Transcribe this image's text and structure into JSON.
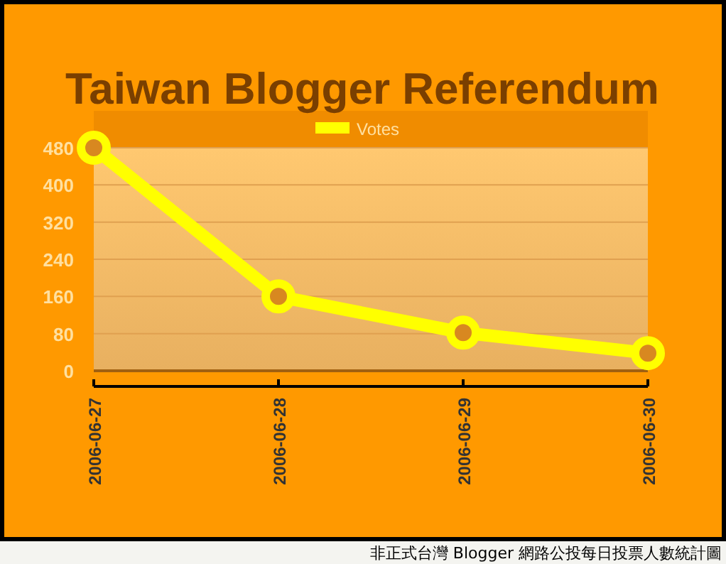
{
  "chart_data": {
    "type": "line",
    "title": "Taiwan Blogger Referendum",
    "categories": [
      "2006-06-27",
      "2006-06-28",
      "2006-06-29",
      "2006-06-30"
    ],
    "series": [
      {
        "name": "Votes",
        "color": "#ffff00",
        "values": [
          480,
          160,
          82,
          38
        ]
      }
    ],
    "ylim": [
      0,
      480
    ],
    "yticks": [
      0,
      80,
      160,
      240,
      320,
      400,
      480
    ],
    "grid": "y",
    "legend": "top",
    "marker": "circle",
    "line_style": "solid",
    "annotations": [
      "非正式台灣 Blogger 網路公投每日投票人數統計圖"
    ]
  }
}
